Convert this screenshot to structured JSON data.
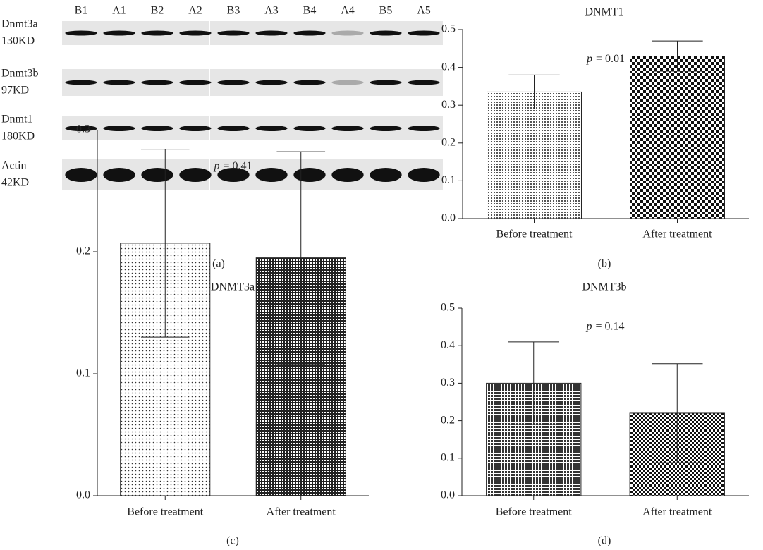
{
  "blot": {
    "lanes": [
      "B1",
      "A1",
      "B2",
      "A2",
      "B3",
      "A3",
      "B4",
      "A4",
      "B5",
      "A5"
    ],
    "rows": [
      {
        "name": "Dnmt3a",
        "size": "130KD"
      },
      {
        "name": "Dnmt3b",
        "size": "97KD"
      },
      {
        "name": "Dnmt1",
        "size": "180KD"
      },
      {
        "name": "Actin",
        "size": "42KD"
      }
    ]
  },
  "panel_labels": [
    "(a)",
    "(b)",
    "(c)",
    "(d)"
  ],
  "chart_data": [
    {
      "type": "bar",
      "title": "DNMT1",
      "categories": [
        "Before treatment",
        "After treatment"
      ],
      "values": [
        0.335,
        0.43
      ],
      "errors": [
        0.045,
        0.04
      ],
      "ylim": [
        0,
        0.5
      ],
      "yticks": [
        {
          "value": 0,
          "label": "0.0"
        },
        0.1,
        0.2,
        0.3,
        0.4,
        0.5
      ],
      "annotation": {
        "symbol": "p",
        "text": "= 0.01"
      }
    },
    {
      "type": "bar",
      "title": "DNMT3a",
      "categories": [
        "Before treatment",
        "After treatment"
      ],
      "values": [
        0.207,
        0.195
      ],
      "errors": [
        0.077,
        0.087
      ],
      "ylim": [
        0,
        0.3
      ],
      "yticks": [
        {
          "value": 0,
          "label": "0.0"
        },
        0.1,
        0.2,
        0.3
      ],
      "annotation": {
        "symbol": "p",
        "text": "= 0.41"
      }
    },
    {
      "type": "bar",
      "title": "DNMT3b",
      "categories": [
        "Before treatment",
        "After treatment"
      ],
      "values": [
        0.3,
        0.22
      ],
      "errors": [
        0.11,
        0.132
      ],
      "ylim": [
        0,
        0.5
      ],
      "yticks": [
        {
          "value": 0,
          "label": "0.0"
        },
        0.1,
        0.2,
        0.3,
        0.4,
        0.5
      ],
      "annotation": {
        "symbol": "p",
        "text": "= 0.14"
      }
    }
  ]
}
